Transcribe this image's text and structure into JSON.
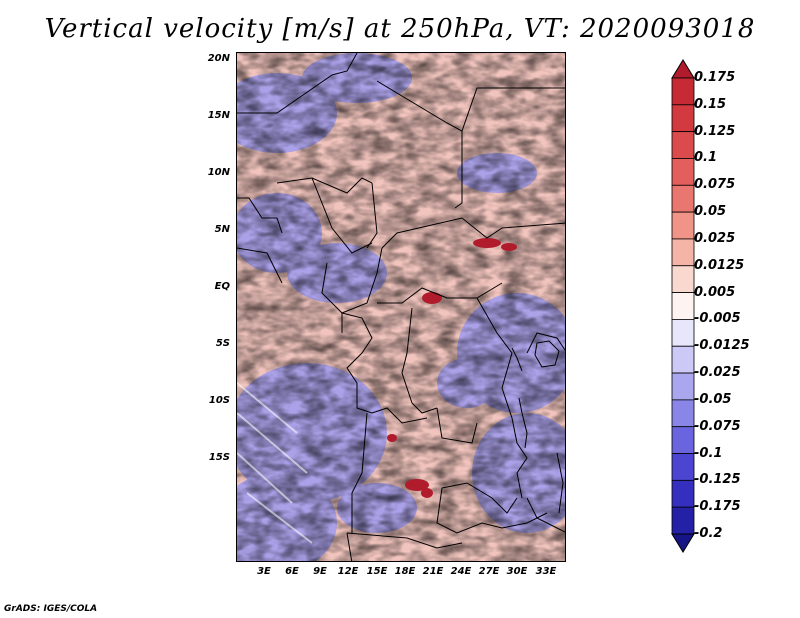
{
  "title": "Vertical velocity [m/s] at 250hPa, VT: 2020093018",
  "footer": "GrADS: IGES/COLA",
  "map": {
    "lat_labels": [
      "20N",
      "15N",
      "10N",
      "5N",
      "EQ",
      "5S",
      "10S",
      "15S"
    ],
    "lon_labels": [
      "3E",
      "6E",
      "9E",
      "12E",
      "15E",
      "18E",
      "21E",
      "24E",
      "27E",
      "30E",
      "33E"
    ]
  },
  "colorbar": {
    "levels": [
      "0.175",
      "0.15",
      "0.125",
      "0.1",
      "0.075",
      "0.05",
      "0.025",
      "0.0125",
      "0.005",
      "-0.005",
      "-0.0125",
      "-0.025",
      "-0.05",
      "-0.075",
      "-0.1",
      "-0.125",
      "-0.175",
      "-0.2"
    ],
    "colors": [
      "#b01c2c",
      "#c62a35",
      "#d23a3f",
      "#db4b4c",
      "#e35f5c",
      "#ea7670",
      "#f09487",
      "#f5b4a8",
      "#f9d8d0",
      "#fdf4f2",
      "#e8e6fb",
      "#ccc9f6",
      "#aaa7ef",
      "#8a86e8",
      "#6a65de",
      "#4b45d1",
      "#342fbe",
      "#2421a6",
      "#161585"
    ]
  }
}
